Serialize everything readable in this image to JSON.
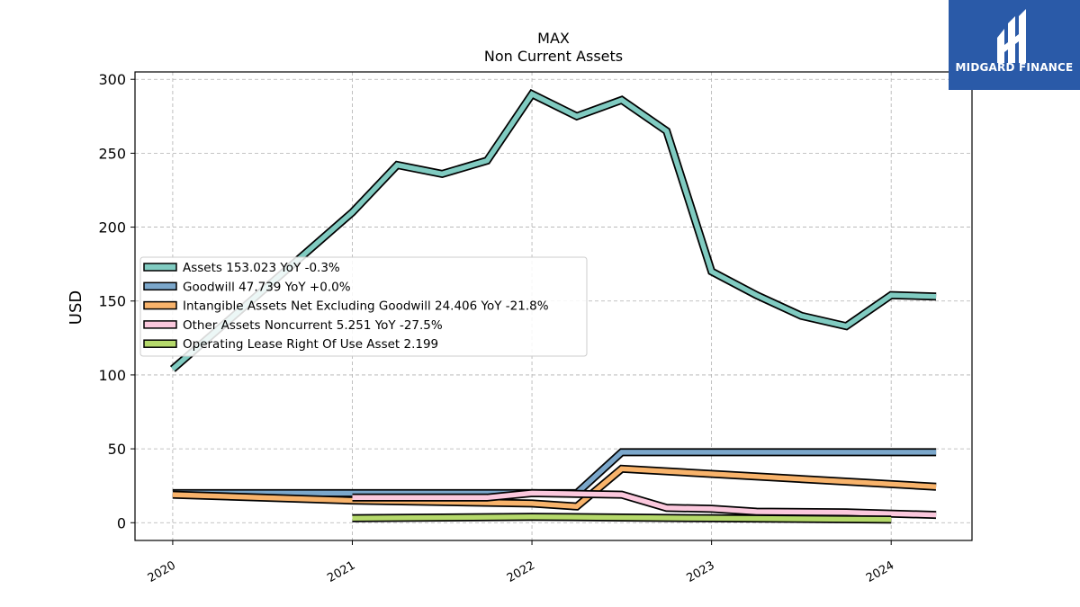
{
  "chart_data": {
    "type": "line",
    "title": "MAX",
    "subtitle": "Non Current  Assets",
    "xlabel": "",
    "ylabel": "USD",
    "ylim": [
      -12,
      305
    ],
    "xlim": [
      2019.79,
      2024.45
    ],
    "yticks": [
      0,
      50,
      100,
      150,
      200,
      250,
      300
    ],
    "xticks": [
      2020,
      2021,
      2022,
      2023,
      2024
    ],
    "grid": true,
    "legend_position": "center-left",
    "series": [
      {
        "name": "Assets  153.023 YoY -0.3%",
        "color": "#80cbc1",
        "x": [
          2020.0,
          2021.0,
          2021.25,
          2021.5,
          2021.75,
          2022.0,
          2022.25,
          2022.5,
          2022.75,
          2023.0,
          2023.25,
          2023.5,
          2023.75,
          2024.0,
          2024.25
        ],
        "y": [
          104,
          210,
          242,
          236,
          245,
          290,
          275,
          286,
          265,
          170,
          154,
          140,
          133,
          154,
          153
        ]
      },
      {
        "name": "Goodwill  47.739 YoY +0.0%",
        "color": "#7ba7cb",
        "x": [
          2020.0,
          2021.0,
          2022.0,
          2022.25,
          2022.5,
          2022.75,
          2023.0,
          2023.25,
          2023.5,
          2023.75,
          2024.0,
          2024.25
        ],
        "y": [
          20,
          20,
          20,
          20,
          47.7,
          47.7,
          47.7,
          47.7,
          47.7,
          47.7,
          47.7,
          47.7
        ]
      },
      {
        "name": "Intangible Assets Net Excluding Goodwill  24.406 YoY -21.8%",
        "color": "#f8b36b",
        "x": [
          2020.0,
          2021.0,
          2022.0,
          2022.25,
          2022.5,
          2023.0,
          2024.25
        ],
        "y": [
          19,
          15,
          13,
          11,
          36.5,
          33,
          24.4
        ]
      },
      {
        "name": "Other Assets Noncurrent  5.251 YoY -27.5%",
        "color": "#fbc8dd",
        "x": [
          2021.0,
          2021.75,
          2022.0,
          2022.5,
          2022.75,
          2023.0,
          2023.25,
          2023.75,
          2024.25
        ],
        "y": [
          17,
          17,
          20,
          19,
          10,
          9.5,
          7.5,
          7,
          5.3
        ]
      },
      {
        "name": "Operating Lease Right Of Use Asset  2.199",
        "color": "#b5d96b",
        "x": [
          2021.0,
          2022.0,
          2023.0,
          2024.0
        ],
        "y": [
          3,
          4,
          3,
          2.2
        ]
      }
    ]
  },
  "logo": {
    "text": "MIDGARD FINANCE",
    "color": "#2a5aa8"
  }
}
